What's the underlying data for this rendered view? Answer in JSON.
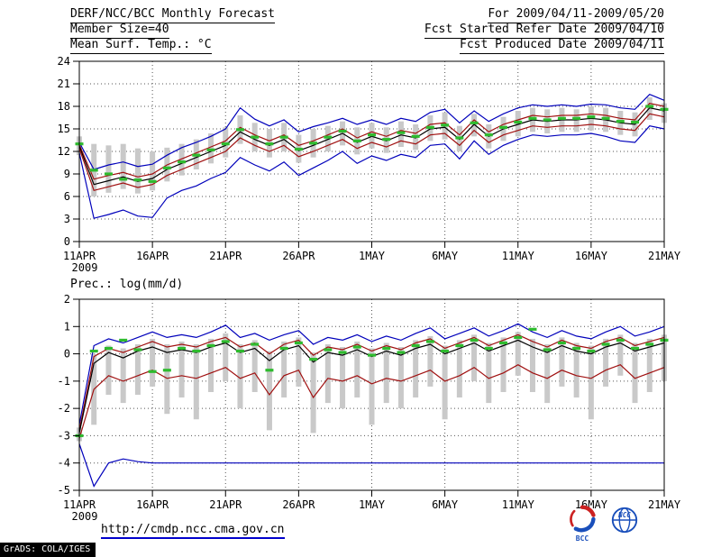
{
  "header": {
    "left": [
      "DERF/NCC/BCC Monthly Forecast",
      "Member Size=40",
      "Mean Surf. Temp.: °C"
    ],
    "right": [
      "For 2009/04/11-2009/05/20",
      "Fcst Started Refer Date 2009/04/10",
      "Fcst Produced Date 2009/04/11"
    ]
  },
  "footer": {
    "url": "http://cmdp.ncc.cma.gov.cn",
    "grads_credit": "GrADS: COLA/IGES",
    "logos": [
      "BCC",
      "NCC"
    ]
  },
  "colors": {
    "blue": "#0000bb",
    "red": "#a01010",
    "black": "#000000",
    "green": "#2ebb2e",
    "bar": "#c9c9c9",
    "grid": "#555555",
    "frame": "#000000",
    "url_underline": "#0000cc",
    "logo_blue": "#1a4fbb",
    "logo_red": "#cc2222"
  },
  "chart_data": [
    {
      "type": "line",
      "title": "Mean Surf. Temp.: °C",
      "x_tick_labels": [
        "11APR",
        "16APR",
        "21APR",
        "26APR",
        "1MAY",
        "6MAY",
        "11MAY",
        "16MAY",
        "21MAY"
      ],
      "year_label": "2009",
      "x_days": 41,
      "x_tick_every": 5,
      "ylim": [
        0,
        24
      ],
      "yticks": [
        24,
        21,
        18,
        15,
        12,
        9,
        6,
        3,
        0
      ],
      "grid": true,
      "series": [
        {
          "name": "blue-upper-envelope",
          "color_key": "blue",
          "values": [
            13.2,
            9.6,
            10.2,
            10.6,
            10.0,
            10.3,
            11.5,
            12.5,
            13.2,
            14.0,
            15.0,
            17.8,
            16.3,
            15.4,
            16.2,
            14.6,
            15.3,
            15.8,
            16.4,
            15.6,
            16.2,
            15.6,
            16.4,
            16.0,
            17.2,
            17.6,
            15.8,
            17.4,
            16.0,
            17.0,
            17.8,
            18.2,
            18.0,
            18.2,
            18.0,
            18.3,
            18.2,
            17.8,
            17.6,
            19.6,
            18.8
          ]
        },
        {
          "name": "red-upper",
          "color_key": "red",
          "values": [
            12.9,
            8.3,
            8.8,
            9.2,
            8.6,
            9.0,
            10.2,
            11.0,
            11.8,
            12.6,
            13.4,
            15.2,
            14.2,
            13.4,
            14.2,
            12.8,
            13.4,
            14.2,
            15.0,
            13.8,
            14.6,
            14.0,
            14.8,
            14.4,
            15.6,
            15.8,
            14.2,
            16.2,
            14.6,
            15.6,
            16.2,
            16.8,
            16.6,
            16.8,
            16.8,
            17.0,
            16.8,
            16.4,
            16.2,
            18.4,
            18.0
          ]
        },
        {
          "name": "black-median",
          "color_key": "black",
          "values": [
            12.7,
            7.6,
            8.1,
            8.6,
            8.0,
            8.4,
            9.6,
            10.4,
            11.2,
            12.0,
            12.8,
            14.6,
            13.6,
            12.8,
            13.6,
            12.1,
            12.8,
            13.6,
            14.4,
            13.2,
            14.0,
            13.4,
            14.2,
            13.8,
            15.0,
            15.2,
            13.6,
            15.6,
            14.0,
            15.0,
            15.6,
            16.2,
            16.0,
            16.2,
            16.2,
            16.4,
            16.2,
            15.8,
            15.6,
            17.8,
            17.4
          ]
        },
        {
          "name": "red-lower",
          "color_key": "red",
          "values": [
            12.4,
            6.8,
            7.3,
            7.8,
            7.2,
            7.6,
            8.8,
            9.6,
            10.4,
            11.2,
            12.0,
            13.8,
            12.8,
            12.0,
            12.8,
            11.3,
            12.0,
            12.8,
            13.6,
            12.4,
            13.2,
            12.6,
            13.4,
            13.0,
            14.2,
            14.4,
            12.8,
            14.8,
            13.2,
            14.2,
            14.8,
            15.4,
            15.2,
            15.4,
            15.4,
            15.6,
            15.4,
            15.0,
            14.8,
            17.0,
            16.6
          ]
        },
        {
          "name": "blue-lower-envelope",
          "color_key": "blue",
          "values": [
            11.8,
            3.1,
            3.6,
            4.2,
            3.4,
            3.2,
            5.8,
            6.8,
            7.4,
            8.4,
            9.2,
            11.2,
            10.2,
            9.4,
            10.6,
            8.8,
            9.8,
            10.8,
            12.0,
            10.4,
            11.4,
            10.8,
            11.6,
            11.2,
            12.8,
            13.0,
            11.0,
            13.4,
            11.6,
            12.8,
            13.6,
            14.2,
            14.0,
            14.2,
            14.2,
            14.4,
            14.0,
            13.4,
            13.2,
            15.4,
            15.0
          ]
        }
      ],
      "bars": {
        "low": [
          11.5,
          6.0,
          6.5,
          7.0,
          6.4,
          6.8,
          8.0,
          8.8,
          9.6,
          10.4,
          11.2,
          13.0,
          12.0,
          11.2,
          12.0,
          10.5,
          11.2,
          12.0,
          12.8,
          11.6,
          12.4,
          11.8,
          12.6,
          12.2,
          13.4,
          13.6,
          12.0,
          14.0,
          12.4,
          13.4,
          14.0,
          14.6,
          14.4,
          14.6,
          14.6,
          14.8,
          14.6,
          14.2,
          14.0,
          16.2,
          15.8
        ],
        "high": [
          14.0,
          13.0,
          12.8,
          13.0,
          12.4,
          12.0,
          12.5,
          13.0,
          13.6,
          14.4,
          15.2,
          16.8,
          15.8,
          15.0,
          15.8,
          14.2,
          15.0,
          15.4,
          16.0,
          15.2,
          15.8,
          15.2,
          16.0,
          15.6,
          16.8,
          17.2,
          15.4,
          17.0,
          15.6,
          16.6,
          17.4,
          17.8,
          17.6,
          17.8,
          17.6,
          18.0,
          17.8,
          17.4,
          17.2,
          19.2,
          18.4
        ]
      },
      "green_marks": [
        13.0,
        9.5,
        9.0,
        8.3,
        8.2,
        8.0,
        9.8,
        10.6,
        11.5,
        12.2,
        13.0,
        14.9,
        13.9,
        13.0,
        13.9,
        12.3,
        13.1,
        13.9,
        14.7,
        13.4,
        14.2,
        13.6,
        14.5,
        14.0,
        15.2,
        15.5,
        13.8,
        15.8,
        14.2,
        15.2,
        15.9,
        16.4,
        16.2,
        16.4,
        16.4,
        16.6,
        16.4,
        16.0,
        15.9,
        18.0,
        17.6
      ]
    },
    {
      "type": "line",
      "title": "Prec.: log(mm/d)",
      "x_tick_labels": [
        "11APR",
        "16APR",
        "21APR",
        "26APR",
        "1MAY",
        "6MAY",
        "11MAY",
        "16MAY",
        "21MAY"
      ],
      "year_label": "2009",
      "x_days": 41,
      "x_tick_every": 5,
      "ylim": [
        -5,
        2
      ],
      "yticks": [
        2,
        1,
        0,
        -1,
        -2,
        -3,
        -4,
        -5
      ],
      "grid": true,
      "series": [
        {
          "name": "blue-upper-envelope",
          "color_key": "blue",
          "values": [
            -2.6,
            0.3,
            0.55,
            0.4,
            0.6,
            0.8,
            0.6,
            0.7,
            0.6,
            0.8,
            1.05,
            0.6,
            0.75,
            0.5,
            0.7,
            0.85,
            0.35,
            0.6,
            0.5,
            0.7,
            0.45,
            0.65,
            0.5,
            0.75,
            0.95,
            0.55,
            0.75,
            0.95,
            0.65,
            0.85,
            1.1,
            0.8,
            0.6,
            0.85,
            0.65,
            0.55,
            0.8,
            1.0,
            0.65,
            0.8,
            1.0
          ]
        },
        {
          "name": "red-upper",
          "color_key": "red",
          "values": [
            -2.8,
            -0.1,
            0.2,
            0.05,
            0.25,
            0.45,
            0.25,
            0.35,
            0.25,
            0.45,
            0.6,
            0.25,
            0.4,
            0.0,
            0.35,
            0.5,
            -0.05,
            0.25,
            0.15,
            0.35,
            0.1,
            0.3,
            0.15,
            0.4,
            0.55,
            0.2,
            0.4,
            0.6,
            0.3,
            0.5,
            0.7,
            0.45,
            0.25,
            0.5,
            0.3,
            0.2,
            0.45,
            0.6,
            0.3,
            0.45,
            0.6
          ]
        },
        {
          "name": "black-median",
          "color_key": "black",
          "values": [
            -2.9,
            -0.35,
            0.05,
            -0.15,
            0.1,
            0.25,
            0.05,
            0.15,
            0.05,
            0.25,
            0.4,
            0.05,
            0.2,
            -0.25,
            0.15,
            0.3,
            -0.3,
            0.05,
            -0.05,
            0.15,
            -0.1,
            0.1,
            -0.05,
            0.2,
            0.35,
            0.0,
            0.2,
            0.4,
            0.1,
            0.3,
            0.5,
            0.25,
            0.05,
            0.3,
            0.1,
            0.0,
            0.25,
            0.4,
            0.1,
            0.25,
            0.4
          ]
        },
        {
          "name": "red-lower",
          "color_key": "red",
          "values": [
            -3.1,
            -1.3,
            -0.8,
            -1.0,
            -0.8,
            -0.6,
            -0.9,
            -0.8,
            -0.9,
            -0.7,
            -0.5,
            -0.9,
            -0.7,
            -1.5,
            -0.8,
            -0.6,
            -1.6,
            -0.9,
            -1.0,
            -0.8,
            -1.1,
            -0.9,
            -1.0,
            -0.8,
            -0.6,
            -1.0,
            -0.8,
            -0.5,
            -0.9,
            -0.7,
            -0.4,
            -0.7,
            -0.9,
            -0.6,
            -0.8,
            -0.9,
            -0.6,
            -0.4,
            -0.9,
            -0.7,
            -0.5
          ]
        },
        {
          "name": "blue-lower-envelope",
          "color_key": "blue",
          "values": [
            -3.3,
            -4.85,
            -4.0,
            -3.85,
            -3.95,
            -4.0,
            -4.0,
            -4.0,
            -4.0,
            -4.0,
            -4.0,
            -4.0,
            -4.0,
            -4.0,
            -4.0,
            -4.0,
            -4.0,
            -4.0,
            -4.0,
            -4.0,
            -4.0,
            -4.0,
            -4.0,
            -4.0,
            -4.0,
            -4.0,
            -4.0,
            -4.0,
            -4.0,
            -4.0,
            -4.0,
            -4.0,
            -4.0,
            -4.0,
            -4.0,
            -4.0,
            -4.0,
            -4.0,
            -4.0,
            -4.0,
            -4.0
          ]
        }
      ],
      "bars": {
        "low": [
          -3.2,
          -2.6,
          -1.5,
          -1.8,
          -1.5,
          -1.2,
          -2.2,
          -1.6,
          -2.4,
          -1.4,
          -1.0,
          -2.0,
          -1.4,
          -2.8,
          -1.6,
          -1.2,
          -2.9,
          -1.8,
          -2.0,
          -1.6,
          -2.6,
          -1.8,
          -2.0,
          -1.6,
          -1.2,
          -2.4,
          -1.6,
          -1.0,
          -1.8,
          -1.4,
          -0.8,
          -1.4,
          -1.8,
          -1.2,
          -1.6,
          -2.4,
          -1.2,
          -0.8,
          -1.8,
          -1.4,
          -1.0
        ],
        "high": [
          -2.7,
          0.0,
          0.3,
          0.2,
          0.35,
          0.55,
          0.35,
          0.45,
          0.35,
          0.55,
          0.75,
          0.35,
          0.5,
          0.1,
          0.45,
          0.6,
          0.05,
          0.35,
          0.25,
          0.45,
          0.2,
          0.4,
          0.25,
          0.5,
          0.65,
          0.3,
          0.5,
          0.7,
          0.4,
          0.6,
          0.8,
          0.55,
          0.35,
          0.6,
          0.4,
          0.3,
          0.55,
          0.7,
          0.4,
          0.55,
          0.7
        ]
      },
      "green_marks": [
        -3.0,
        0.1,
        0.2,
        0.5,
        0.15,
        -0.65,
        -0.6,
        0.2,
        0.1,
        0.3,
        0.45,
        0.1,
        0.35,
        -0.6,
        0.2,
        0.4,
        -0.2,
        0.15,
        0.05,
        0.25,
        -0.05,
        0.2,
        0.05,
        0.3,
        0.45,
        0.1,
        0.3,
        0.5,
        0.2,
        0.4,
        0.6,
        0.9,
        0.15,
        0.4,
        0.2,
        0.1,
        0.35,
        0.5,
        0.2,
        0.35,
        0.5
      ]
    }
  ]
}
